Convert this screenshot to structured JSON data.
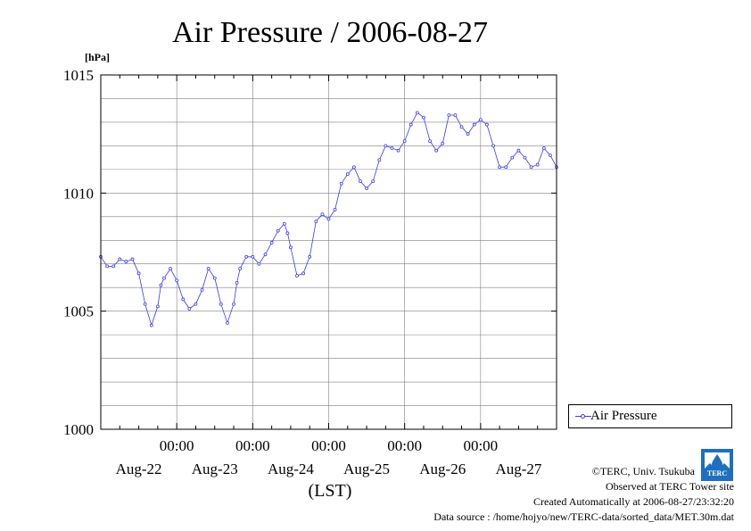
{
  "chart_data": {
    "type": "line",
    "title": "Air Pressure / 2006-08-27",
    "y_unit_label": "[hPa]",
    "xlabel": "(LST)",
    "ylim": [
      1000,
      1015
    ],
    "y_ticks": [
      1000,
      1005,
      1010,
      1015
    ],
    "y_tick_labels": [
      "1000",
      "1005",
      "1010",
      "1015"
    ],
    "y_minor_step": 1,
    "xlim_hours": [
      0,
      144
    ],
    "x_time_ticks": [
      {
        "hour": 24,
        "label": "00:00"
      },
      {
        "hour": 48,
        "label": "00:00"
      },
      {
        "hour": 72,
        "label": "00:00"
      },
      {
        "hour": 96,
        "label": "00:00"
      },
      {
        "hour": 120,
        "label": "00:00"
      }
    ],
    "x_day_labels": [
      {
        "hour": 12,
        "label": "Aug-22"
      },
      {
        "hour": 36,
        "label": "Aug-23"
      },
      {
        "hour": 60,
        "label": "Aug-24"
      },
      {
        "hour": 84,
        "label": "Aug-25"
      },
      {
        "hour": 108,
        "label": "Aug-26"
      },
      {
        "hour": 132,
        "label": "Aug-27"
      }
    ],
    "grid": true,
    "legend_position": "bottom-right",
    "series": [
      {
        "name": "Air Pressure",
        "color": "#3a3af0",
        "marker": "open-circle",
        "x": [
          0,
          2,
          4,
          6,
          8,
          10,
          12,
          14,
          16,
          18,
          19,
          20,
          22,
          24,
          26,
          28,
          30,
          32,
          34,
          36,
          38,
          40,
          42,
          43,
          44,
          46,
          48,
          50,
          52,
          54,
          56,
          58,
          59,
          60,
          62,
          64,
          66,
          68,
          70,
          72,
          74,
          76,
          78,
          80,
          82,
          84,
          86,
          88,
          90,
          92,
          94,
          96,
          98,
          100,
          102,
          104,
          106,
          108,
          110,
          112,
          114,
          116,
          118,
          120,
          122,
          124,
          126,
          128,
          130,
          132,
          134,
          136,
          138,
          140,
          142,
          144
        ],
        "y": [
          1007.3,
          1006.9,
          1006.9,
          1007.2,
          1007.1,
          1007.2,
          1006.6,
          1005.3,
          1004.4,
          1005.2,
          1006.1,
          1006.4,
          1006.8,
          1006.3,
          1005.5,
          1005.1,
          1005.3,
          1005.9,
          1006.8,
          1006.4,
          1005.3,
          1004.5,
          1005.3,
          1006.2,
          1006.8,
          1007.3,
          1007.3,
          1007.0,
          1007.4,
          1007.9,
          1008.4,
          1008.7,
          1008.3,
          1007.7,
          1006.5,
          1006.6,
          1007.3,
          1008.8,
          1009.1,
          1008.9,
          1009.3,
          1010.4,
          1010.8,
          1011.1,
          1010.5,
          1010.2,
          1010.5,
          1011.4,
          1012.0,
          1011.9,
          1011.8,
          1012.2,
          1012.9,
          1013.4,
          1013.2,
          1012.2,
          1011.8,
          1012.1,
          1013.3,
          1013.3,
          1012.8,
          1012.5,
          1012.9,
          1013.1,
          1012.9,
          1012.0,
          1011.1,
          1011.1,
          1011.5,
          1011.8,
          1011.5,
          1011.1,
          1011.2,
          1011.9,
          1011.6,
          1011.1
        ]
      }
    ]
  },
  "credits": {
    "line1": "©TERC, Univ. Tsukuba",
    "line2": "Observed at TERC Tower site",
    "line3": "Created Automatically at 2006-08-27/23:32:20",
    "line4": "Data source : /home/hojyo/new/TERC-data/sorted_data/MET.30m.dat"
  },
  "logo_text": "TERC",
  "colors": {
    "series": "#3a3af0",
    "grid": "#808080",
    "logo": "#1e6fbf"
  }
}
